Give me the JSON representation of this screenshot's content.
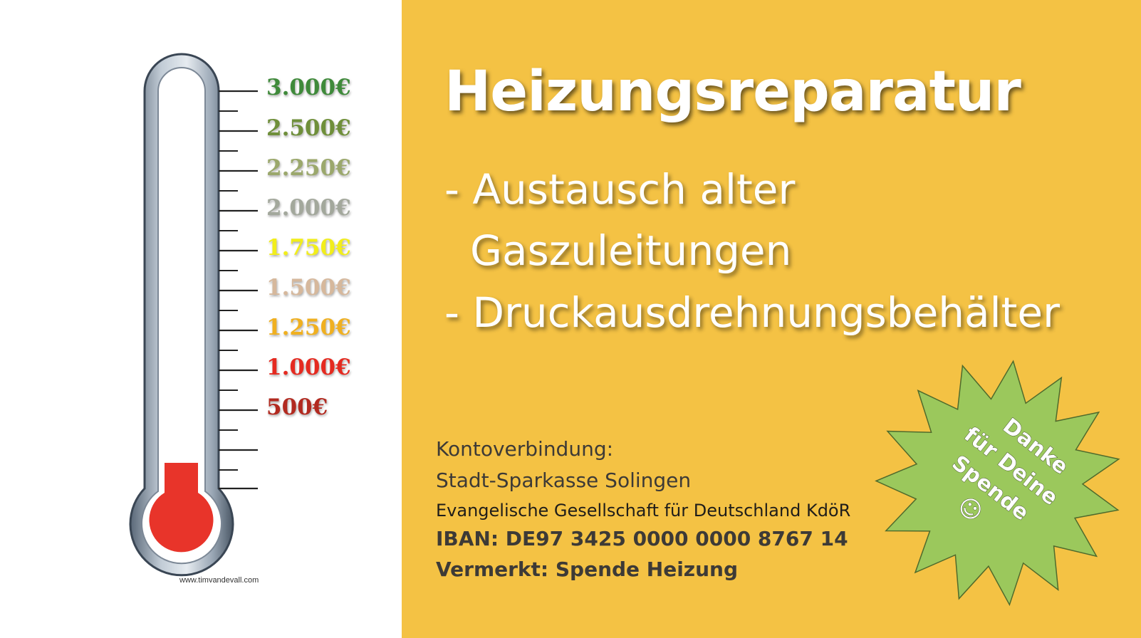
{
  "thermometer": {
    "scale": [
      {
        "label": "3.000€",
        "color": "#3f8a3a"
      },
      {
        "label": "2.500€",
        "color": "#6f8f3a"
      },
      {
        "label": "2.250€",
        "color": "#9ba86c"
      },
      {
        "label": "2.000€",
        "color": "#a3a89c"
      },
      {
        "label": "1.750€",
        "color": "#f2ee1a"
      },
      {
        "label": "1.500€",
        "color": "#d6b89c"
      },
      {
        "label": "1.250€",
        "color": "#f0b020"
      },
      {
        "label": "1.000€",
        "color": "#e52a20"
      },
      {
        "label": "500€",
        "color": "#b22a20"
      }
    ],
    "fill_amount_eur": 0,
    "mercury_color": "#e8342a",
    "watermark": "www.timvandevall.com"
  },
  "title": "Heizungsreparatur",
  "bullets": [
    "- Austausch alter",
    "Gaszuleitungen",
    "- Druckausdrehnungsbehälter"
  ],
  "account": {
    "heading": "Kontoverbindung:",
    "bank": "Stadt-Sparkasse Solingen",
    "holder": "Evangelische Gesellschaft für Deutschland KdöR",
    "iban": "IBAN: DE97 3425 0000 0000 8767 14",
    "reference": "Vermerkt: Spende Heizung"
  },
  "badge": {
    "lines": [
      "Danke",
      "für Deine",
      "Spende",
      "☺"
    ],
    "color": "#9bc85c"
  },
  "colors": {
    "background": "#f4c244",
    "left_panel": "#ffffff"
  }
}
